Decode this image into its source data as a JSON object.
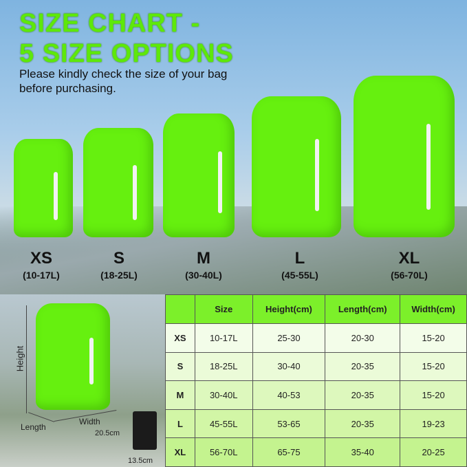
{
  "title_line1": "SIZE CHART -",
  "title_line2": "5 SIZE OPTIONS",
  "subtitle_line1": "Please kindly check the size of your bag",
  "subtitle_line2": "before purchasing.",
  "sizes": [
    {
      "name": "XS",
      "volume": "(10-17L)"
    },
    {
      "name": "S",
      "volume": "(18-25L)"
    },
    {
      "name": "M",
      "volume": "(30-40L)"
    },
    {
      "name": "L",
      "volume": "(45-55L)"
    },
    {
      "name": "XL",
      "volume": "(56-70L)"
    }
  ],
  "diagram": {
    "height": "Height",
    "length": "Length",
    "width": "Width",
    "pouch_height": "20.5cm",
    "pouch_width": "13.5cm"
  },
  "table": {
    "headers": [
      "",
      "Size",
      "Height(cm)",
      "Length(cm)",
      "Width(cm)"
    ],
    "rows": [
      [
        "XS",
        "10-17L",
        "25-30",
        "20-30",
        "15-20"
      ],
      [
        "S",
        "18-25L",
        "30-40",
        "20-35",
        "15-20"
      ],
      [
        "M",
        "30-40L",
        "40-53",
        "20-35",
        "15-20"
      ],
      [
        "L",
        "45-55L",
        "53-65",
        "20-35",
        "19-23"
      ],
      [
        "XL",
        "56-70L",
        "65-75",
        "35-40",
        "20-25"
      ]
    ]
  },
  "colors": {
    "accent": "#66f00f",
    "header": "#7cf02a"
  }
}
